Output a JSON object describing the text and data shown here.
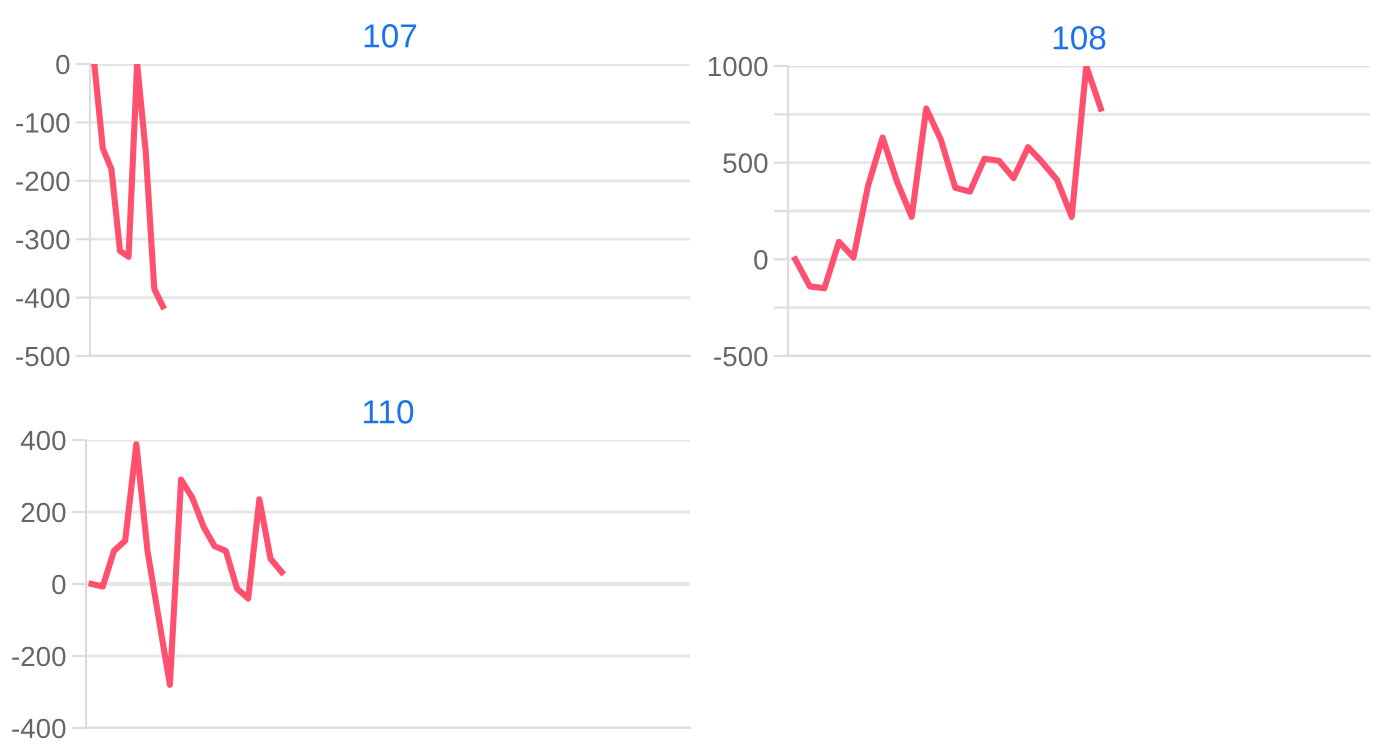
{
  "chart_data": [
    {
      "type": "line",
      "title": "107",
      "categories": [
        null,
        null,
        null,
        null,
        null,
        null,
        null,
        null,
        null,
        null,
        null,
        null,
        null,
        null,
        null,
        null,
        null,
        null,
        null,
        null,
        null,
        null,
        null,
        null,
        null,
        null,
        null,
        null,
        null,
        null,
        null,
        null,
        null,
        null,
        null,
        null,
        null,
        null,
        null,
        null,
        null,
        null,
        null,
        null,
        null,
        null,
        null,
        null,
        null,
        null,
        null,
        null,
        null,
        null,
        null,
        null,
        null,
        null,
        null,
        null,
        null,
        null,
        null,
        null,
        null,
        null,
        null,
        null,
        null,
        null
      ],
      "ylim": [
        -500,
        0
      ],
      "yticks": [
        -500,
        -400,
        -300,
        -200,
        -100,
        0
      ],
      "grid": "y",
      "tick_labels": "y",
      "marker": "none",
      "series": [
        {
          "color": "#ff5070",
          "values": [
            0,
            -145,
            -180,
            -320,
            -330,
            0,
            -150,
            -385,
            -415,
            null,
            null,
            null,
            null,
            null,
            null,
            null,
            null,
            null,
            null,
            null,
            null,
            null,
            null,
            null,
            null,
            null,
            null,
            null,
            null,
            null,
            null,
            null,
            null,
            null,
            null,
            null,
            null,
            null,
            null,
            null,
            null,
            null,
            null,
            null,
            null,
            null,
            null,
            null,
            null,
            null,
            null,
            null,
            null,
            null,
            null,
            null,
            null,
            null,
            null,
            null,
            null,
            null,
            null,
            null,
            null,
            null,
            null,
            null,
            null,
            null
          ]
        }
      ]
    },
    {
      "type": "line",
      "title": "108",
      "categories": [
        null,
        null,
        null,
        null,
        null,
        null,
        null,
        null,
        null,
        null,
        null,
        null,
        null,
        null,
        null,
        null,
        null,
        null,
        null,
        null,
        null,
        null,
        null,
        null,
        null,
        null,
        null,
        null,
        null,
        null,
        null,
        null,
        null,
        null,
        null,
        null,
        null,
        null,
        null,
        null
      ],
      "ylim": [
        -500,
        1000
      ],
      "yticks": [
        -500,
        {
          "value": -250,
          "label": null
        },
        0,
        {
          "value": 250,
          "label": null
        },
        500,
        {
          "value": 750,
          "label": null
        },
        1000
      ],
      "grid": "y",
      "tick_labels": "y",
      "marker": "none",
      "series": [
        {
          "color": "#ff5070",
          "values": [
            0,
            -140,
            -150,
            90,
            10,
            380,
            630,
            400,
            220,
            780,
            620,
            370,
            350,
            520,
            510,
            420,
            580,
            500,
            410,
            220,
            1000,
            780,
            null,
            null,
            null,
            null,
            null,
            null,
            null,
            null,
            null,
            null,
            null,
            null,
            null,
            null,
            null,
            null,
            null,
            null
          ]
        }
      ]
    },
    {
      "type": "line",
      "title": "110",
      "categories": [
        null,
        null,
        null,
        null,
        null,
        null,
        null,
        null,
        null,
        null,
        null,
        null,
        null,
        null,
        null,
        null,
        null,
        null,
        null,
        null,
        null,
        null,
        null,
        null,
        null,
        null,
        null,
        null,
        null,
        null,
        null,
        null,
        null,
        null,
        null,
        null,
        null,
        null,
        null,
        null,
        null,
        null,
        null,
        null,
        null,
        null,
        null,
        null,
        null,
        null,
        null,
        null,
        null,
        null
      ],
      "ylim": [
        -400,
        400
      ],
      "yticks": [
        -400,
        -200,
        0,
        200,
        400
      ],
      "grid": "y",
      "tick_labels": "y",
      "marker": "none",
      "series": [
        {
          "color": "#ff5070",
          "values": [
            0,
            -7,
            92,
            120,
            388,
            92,
            -95,
            -280,
            290,
            240,
            160,
            105,
            92,
            -13,
            -40,
            235,
            70,
            33,
            null,
            null,
            null,
            null,
            null,
            null,
            null,
            null,
            null,
            null,
            null,
            null,
            null,
            null,
            null,
            null,
            null,
            null,
            null,
            null,
            null,
            null,
            null,
            null,
            null,
            null,
            null,
            null,
            null,
            null,
            null,
            null,
            null,
            null,
            null,
            null
          ]
        }
      ]
    }
  ]
}
